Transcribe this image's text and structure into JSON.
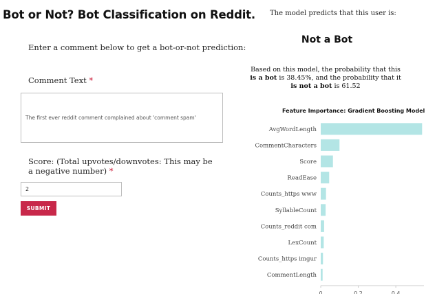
{
  "page": {
    "title": "Bot or Not? Bot Classification on Reddit.",
    "intro": "Enter a comment below to get a bot-or-not prediction:"
  },
  "form": {
    "comment_label": "Comment Text",
    "required_mark": "*",
    "comment_value": "The first ever reddit comment complained about 'comment spam'",
    "score_label": "Score: (Total upvotes/downvotes: This may be a negative number)",
    "score_value": "2",
    "submit_label": "SUBMIT"
  },
  "result": {
    "header": "The model predicts that this user is:",
    "prediction": "Not a Bot",
    "prob_text_1": "Based on this model, the probability that this",
    "prob_text_2_bold": "is a bot",
    "prob_text_3": " is 38.45%, and the probability that it",
    "prob_text_4_bold": "is not a bot",
    "prob_text_5": " is 61.52"
  },
  "chart_data": {
    "type": "bar",
    "orientation": "horizontal",
    "title": "Feature Importance: Gradient Boosting Model",
    "categories": [
      "AvgWordLength",
      "CommentCharacters",
      "Score",
      "ReadEase",
      "Counts_https www",
      "SyllableCount",
      "Counts_reddit com",
      "LexCount",
      "Counts_https imgur",
      "CommentLength"
    ],
    "values": [
      0.54,
      0.1,
      0.065,
      0.045,
      0.028,
      0.026,
      0.018,
      0.016,
      0.012,
      0.01
    ],
    "xlim": [
      0,
      0.55
    ],
    "xticks": [
      0,
      0.2,
      0.4
    ],
    "xtick_labels": [
      "0",
      "0.2",
      "0.4"
    ],
    "bar_color": "#b3e5e5"
  }
}
